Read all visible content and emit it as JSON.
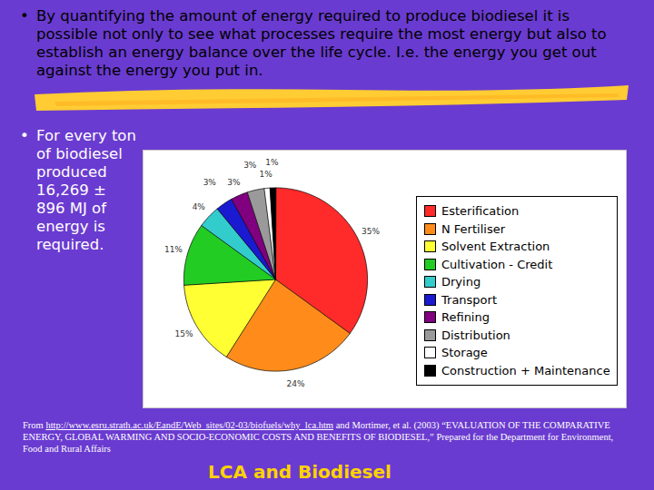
{
  "chart_data": {
    "type": "pie",
    "categories": [
      "Esterification",
      "N Fertiliser",
      "Solvent Extraction",
      "Cultivation - Credit",
      "Drying",
      "Transport",
      "Refining",
      "Distribution",
      "Storage",
      "Construction + Maintenance"
    ],
    "values": [
      35,
      24,
      15,
      11,
      4,
      3,
      3,
      3,
      1,
      1
    ],
    "value_labels": [
      "35%",
      "24%",
      "15%",
      "11%",
      "4%",
      "3%",
      "3%",
      "3%",
      "1%",
      "1%"
    ],
    "colors": [
      "#ff2a2a",
      "#ff8c1a",
      "#ffff33",
      "#22cc22",
      "#33cccc",
      "#1a1ad0",
      "#800080",
      "#9a9a9a",
      "#ffffff",
      "#000000"
    ],
    "legend": "right",
    "data_labels": true
  },
  "slide": {
    "bullet": "•",
    "bullets": [
      "By quantifying the amount of energy required to produce biodiesel it is possible not only to see what processes require the most energy but also to establish an energy balance over the life cycle. I.e. the energy you get out against the energy you put in.",
      "For every ton of biodiesel produced 16,269 ± 896 MJ of energy is required."
    ],
    "source_prefix": "From",
    "source_url": "http://www.esru.strath.ac.uk/EandE/Web_sites/02-03/biofuels/why_lca.htm",
    "source_rest": "and Mortimer, et al. (2003) “EVALUATION OF THE COMPARATIVE ENERGY, GLOBAL WARMING AND SOCIO-ECONOMIC COSTS AND BENEFITS OF BIODIESEL,” Prepared for the Department for Environment, Food and Rural Affairs",
    "footer": "LCA and Biodiesel"
  }
}
